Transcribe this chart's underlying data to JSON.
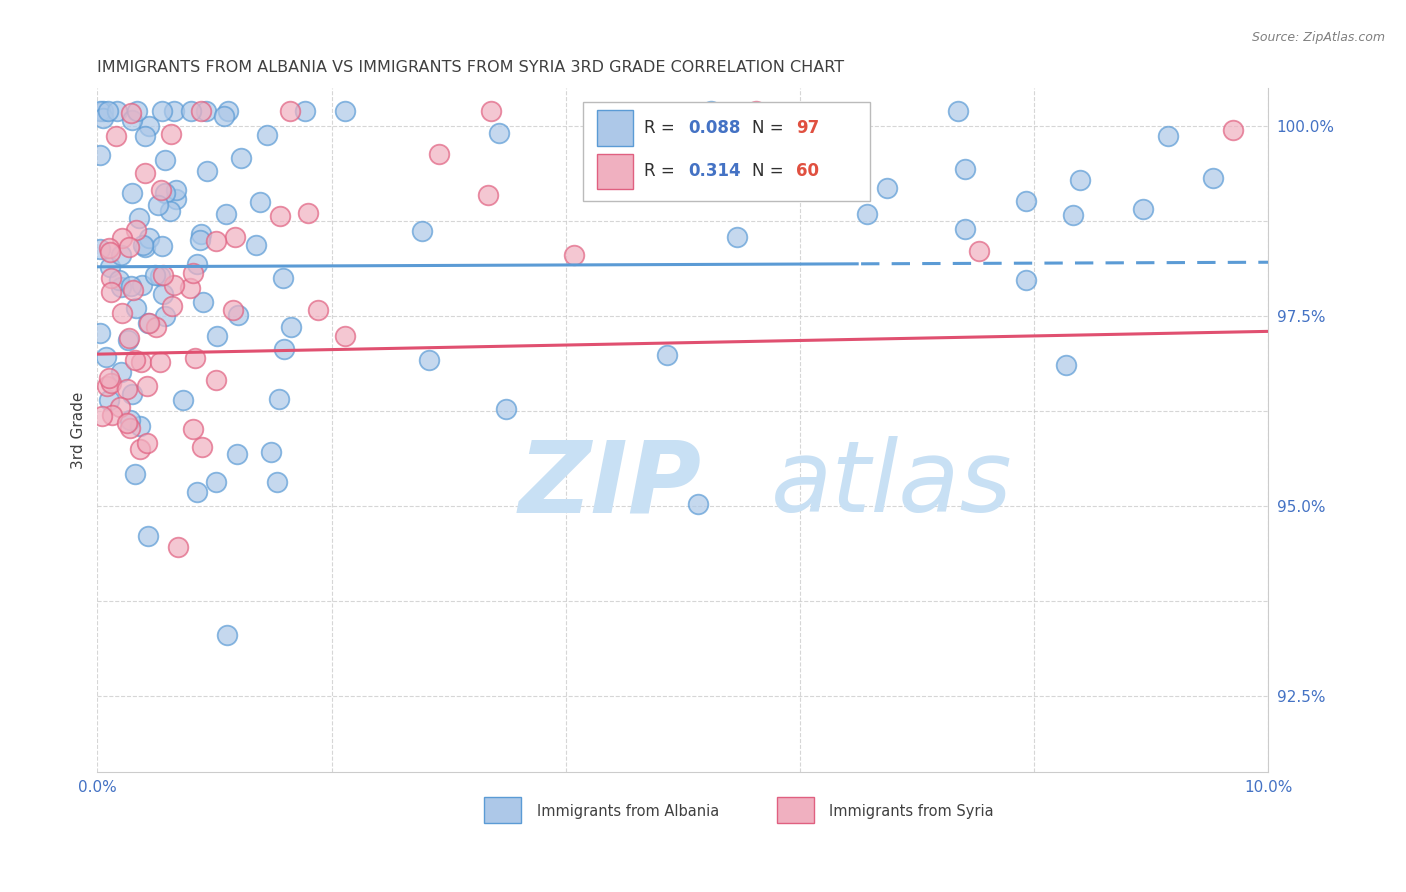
{
  "title": "IMMIGRANTS FROM ALBANIA VS IMMIGRANTS FROM SYRIA 3RD GRADE CORRELATION CHART",
  "source": "Source: ZipAtlas.com",
  "ylabel": "3rd Grade",
  "xmin": 0.0,
  "xmax": 0.1,
  "ymin": 0.915,
  "ymax": 1.005,
  "ytick_vals": [
    0.925,
    0.9375,
    0.95,
    0.9625,
    0.975,
    0.9875,
    1.0
  ],
  "ytick_labels": [
    "92.5%",
    "",
    "95.0%",
    "",
    "97.5%",
    "",
    "100.0%"
  ],
  "xtick_vals": [
    0.0,
    0.02,
    0.04,
    0.06,
    0.08,
    0.1
  ],
  "xtick_labels": [
    "0.0%",
    "",
    "",
    "",
    "",
    "10.0%"
  ],
  "r_albania": 0.088,
  "n_albania": 97,
  "r_syria": 0.314,
  "n_syria": 60,
  "color_albania_fill": "#adc8e8",
  "color_albania_edge": "#5b9bd5",
  "color_syria_fill": "#f0b0c0",
  "color_syria_edge": "#e06080",
  "color_line_albania": "#5b9bd5",
  "color_line_syria": "#e05070",
  "color_axis_labels": "#4472c4",
  "color_title": "#404040",
  "color_source": "#808080",
  "watermark_zip_color": "#c8e0f4",
  "watermark_atlas_color": "#c8e0f4",
  "background_color": "#ffffff",
  "grid_color": "#cccccc",
  "legend_r_albania_color": "#4472c4",
  "legend_n_albania_color": "#e05040",
  "legend_r_syria_color": "#4472c4",
  "legend_n_syria_color": "#e05040"
}
